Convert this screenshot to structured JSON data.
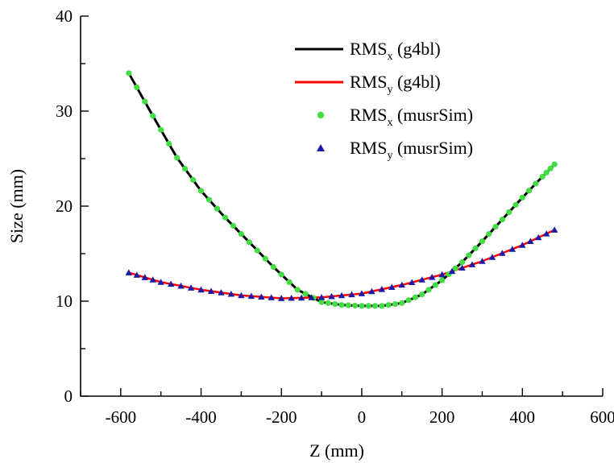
{
  "chart_data": {
    "type": "line",
    "xlabel": "Z (mm)",
    "ylabel": "Size (mm)",
    "xlim": [
      -700,
      600
    ],
    "ylim": [
      0,
      40
    ],
    "xticks": [
      -600,
      -400,
      -200,
      0,
      200,
      400,
      600
    ],
    "yticks": [
      0,
      10,
      20,
      30,
      40
    ],
    "legend_position": "top-center",
    "series": [
      {
        "name": "RMS_x (g4bl)",
        "legend_main": "RMS",
        "legend_sub": "x",
        "legend_suffix": " (g4bl)",
        "style": "line",
        "color": "#000000",
        "x": [
          -580,
          -520,
          -460,
          -400,
          -340,
          -280,
          -220,
          -160,
          -100,
          -50,
          0,
          50,
          100,
          150,
          200,
          250,
          300,
          350,
          400,
          450,
          480
        ],
        "y": [
          34.0,
          29.5,
          25.1,
          21.6,
          18.8,
          16.2,
          13.6,
          11.2,
          9.9,
          9.6,
          9.5,
          9.5,
          9.8,
          10.7,
          12.2,
          14.1,
          16.3,
          18.6,
          20.9,
          23.1,
          24.4
        ]
      },
      {
        "name": "RMS_y (g4bl)",
        "legend_main": "RMS",
        "legend_sub": "y",
        "legend_suffix": " (g4bl)",
        "style": "line",
        "color": "#ff0000",
        "x": [
          -580,
          -500,
          -400,
          -300,
          -200,
          -100,
          0,
          100,
          200,
          300,
          400,
          480
        ],
        "y": [
          13.0,
          12.0,
          11.2,
          10.6,
          10.3,
          10.4,
          10.8,
          11.7,
          12.8,
          14.2,
          15.9,
          17.5
        ]
      },
      {
        "name": "RMS_x (musrSim)",
        "legend_main": "RMS",
        "legend_sub": "x",
        "legend_suffix": " (musrSim)",
        "style": "circle",
        "color": "#44dd44",
        "x": [
          -580,
          -520,
          -460,
          -400,
          -340,
          -280,
          -220,
          -160,
          -100,
          -50,
          0,
          50,
          100,
          150,
          200,
          250,
          300,
          350,
          400,
          450,
          480
        ],
        "y": [
          34.0,
          29.5,
          25.1,
          21.6,
          18.8,
          16.2,
          13.6,
          11.2,
          9.9,
          9.6,
          9.5,
          9.5,
          9.8,
          10.7,
          12.2,
          14.1,
          16.3,
          18.6,
          20.9,
          23.1,
          24.4
        ]
      },
      {
        "name": "RMS_y (musrSim)",
        "legend_main": "RMS",
        "legend_sub": "y",
        "legend_suffix": " (musrSim)",
        "style": "triangle",
        "color": "#1a1aaa",
        "x": [
          -580,
          -500,
          -400,
          -300,
          -200,
          -100,
          0,
          100,
          200,
          300,
          400,
          480
        ],
        "y": [
          13.0,
          12.0,
          11.2,
          10.6,
          10.3,
          10.4,
          10.8,
          11.7,
          12.8,
          14.2,
          15.9,
          17.5
        ]
      }
    ]
  }
}
